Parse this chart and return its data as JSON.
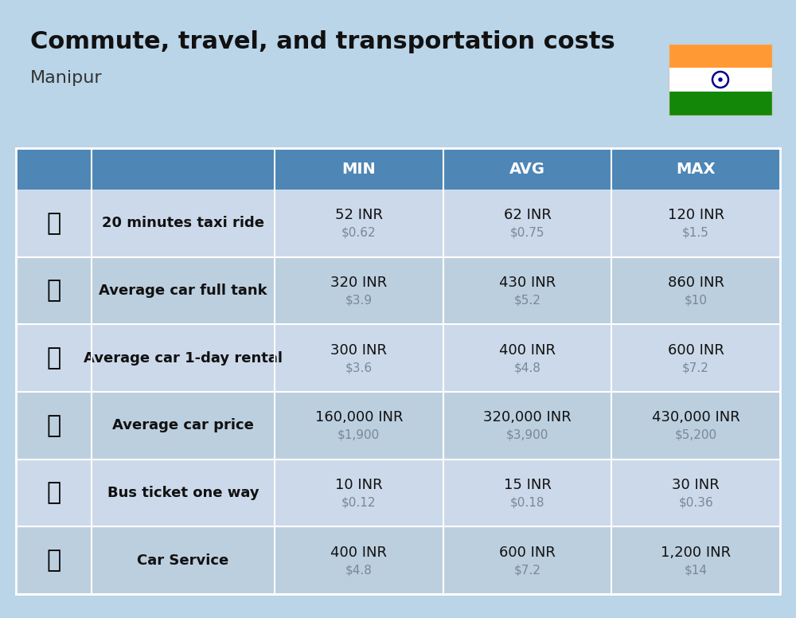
{
  "title": "Commute, travel, and transportation costs",
  "subtitle": "Manipur",
  "bg_color": "#bad4e8",
  "header_bg": "#4e86b5",
  "header_text_color": "#ffffff",
  "row_bg_odd": "#ccd9ea",
  "row_bg_even": "#bccfdf",
  "col_divider": "#aabdd0",
  "col_headers": [
    "MIN",
    "AVG",
    "MAX"
  ],
  "rows": [
    {
      "label": "20 minutes taxi ride",
      "min_inr": "52 INR",
      "min_usd": "$0.62",
      "avg_inr": "62 INR",
      "avg_usd": "$0.75",
      "max_inr": "120 INR",
      "max_usd": "$1.5"
    },
    {
      "label": "Average car full tank",
      "min_inr": "320 INR",
      "min_usd": "$3.9",
      "avg_inr": "430 INR",
      "avg_usd": "$5.2",
      "max_inr": "860 INR",
      "max_usd": "$10"
    },
    {
      "label": "Average car 1-day rental",
      "min_inr": "300 INR",
      "min_usd": "$3.6",
      "avg_inr": "400 INR",
      "avg_usd": "$4.8",
      "max_inr": "600 INR",
      "max_usd": "$7.2"
    },
    {
      "label": "Average car price",
      "min_inr": "160,000 INR",
      "min_usd": "$1,900",
      "avg_inr": "320,000 INR",
      "avg_usd": "$3,900",
      "max_inr": "430,000 INR",
      "max_usd": "$5,200"
    },
    {
      "label": "Bus ticket one way",
      "min_inr": "10 INR",
      "min_usd": "$0.12",
      "avg_inr": "15 INR",
      "avg_usd": "$0.18",
      "max_inr": "30 INR",
      "max_usd": "$0.36"
    },
    {
      "label": "Car Service",
      "min_inr": "400 INR",
      "min_usd": "$4.8",
      "avg_inr": "600 INR",
      "avg_usd": "$7.2",
      "max_inr": "1,200 INR",
      "max_usd": "$14"
    }
  ]
}
